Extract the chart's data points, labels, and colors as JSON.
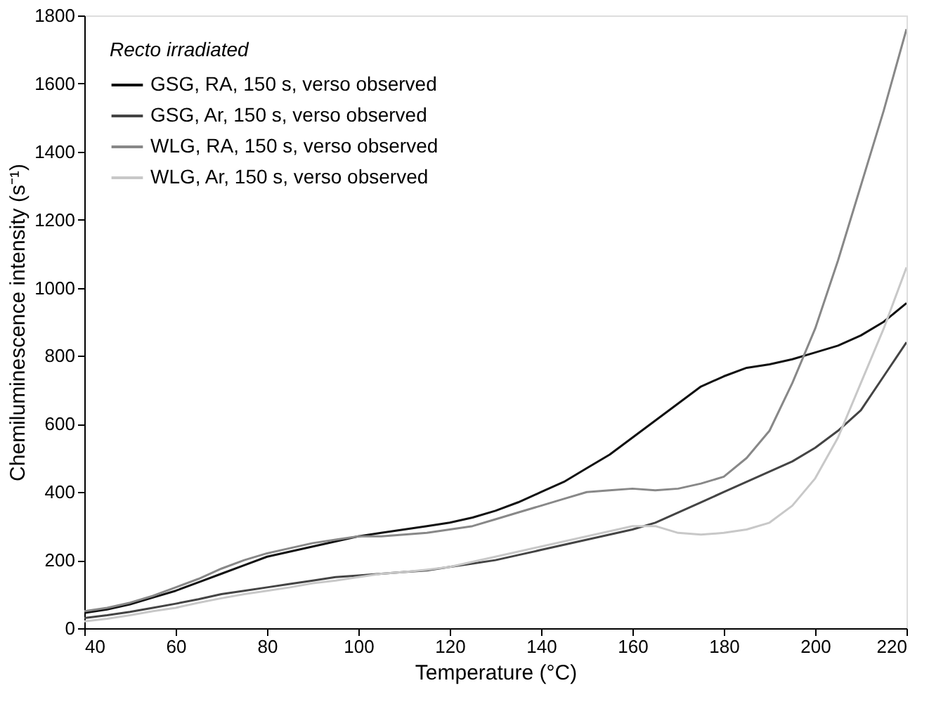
{
  "chart_data": {
    "type": "line",
    "xlabel": "Temperature (°C)",
    "ylabel": "Chemiluminescence intensity (s⁻¹)",
    "legend_title": "Recto irradiated",
    "legend": "top left",
    "grid": false,
    "marker": "none",
    "line_style": "solid",
    "x": [
      40,
      45,
      50,
      55,
      60,
      65,
      70,
      75,
      80,
      85,
      90,
      95,
      100,
      105,
      110,
      115,
      120,
      125,
      130,
      135,
      140,
      145,
      150,
      155,
      160,
      165,
      170,
      175,
      180,
      185,
      190,
      195,
      200,
      205,
      210,
      215,
      220
    ],
    "xlim": [
      40,
      220
    ],
    "xticks": [
      40,
      60,
      80,
      100,
      120,
      140,
      160,
      180,
      200,
      220
    ],
    "ylim": [
      0,
      1800
    ],
    "yticks": [
      0,
      200,
      400,
      600,
      800,
      1000,
      1200,
      1400,
      1600,
      1800
    ],
    "series": [
      {
        "name": "GSG, RA, 150 s, verso observed",
        "color": "#111111",
        "values": [
          45,
          55,
          70,
          90,
          110,
          135,
          160,
          185,
          210,
          225,
          240,
          255,
          270,
          280,
          290,
          300,
          310,
          325,
          345,
          370,
          400,
          430,
          470,
          510,
          560,
          610,
          660,
          710,
          740,
          765,
          775,
          790,
          810,
          830,
          860,
          900,
          955
        ]
      },
      {
        "name": "GSG, Ar, 150 s, verso observed",
        "color": "#444444",
        "values": [
          30,
          38,
          48,
          60,
          72,
          85,
          100,
          110,
          120,
          130,
          140,
          150,
          155,
          160,
          165,
          170,
          180,
          190,
          200,
          215,
          230,
          245,
          260,
          275,
          290,
          310,
          340,
          370,
          400,
          430,
          460,
          490,
          530,
          580,
          640,
          740,
          840
        ]
      },
      {
        "name": "WLG, RA, 150 s, verso observed",
        "color": "#888888",
        "values": [
          50,
          60,
          75,
          95,
          120,
          145,
          175,
          200,
          220,
          235,
          250,
          260,
          270,
          270,
          275,
          280,
          290,
          300,
          320,
          340,
          360,
          380,
          400,
          405,
          410,
          405,
          410,
          425,
          445,
          500,
          580,
          720,
          880,
          1080,
          1300,
          1520,
          1760
        ]
      },
      {
        "name": "WLG, Ar, 150 s, verso observed",
        "color": "#c8c8c8",
        "values": [
          20,
          28,
          38,
          50,
          60,
          75,
          88,
          100,
          110,
          120,
          132,
          140,
          150,
          160,
          165,
          172,
          180,
          195,
          210,
          225,
          240,
          255,
          270,
          285,
          300,
          300,
          280,
          275,
          280,
          290,
          310,
          360,
          440,
          560,
          720,
          880,
          1060
        ]
      }
    ]
  }
}
